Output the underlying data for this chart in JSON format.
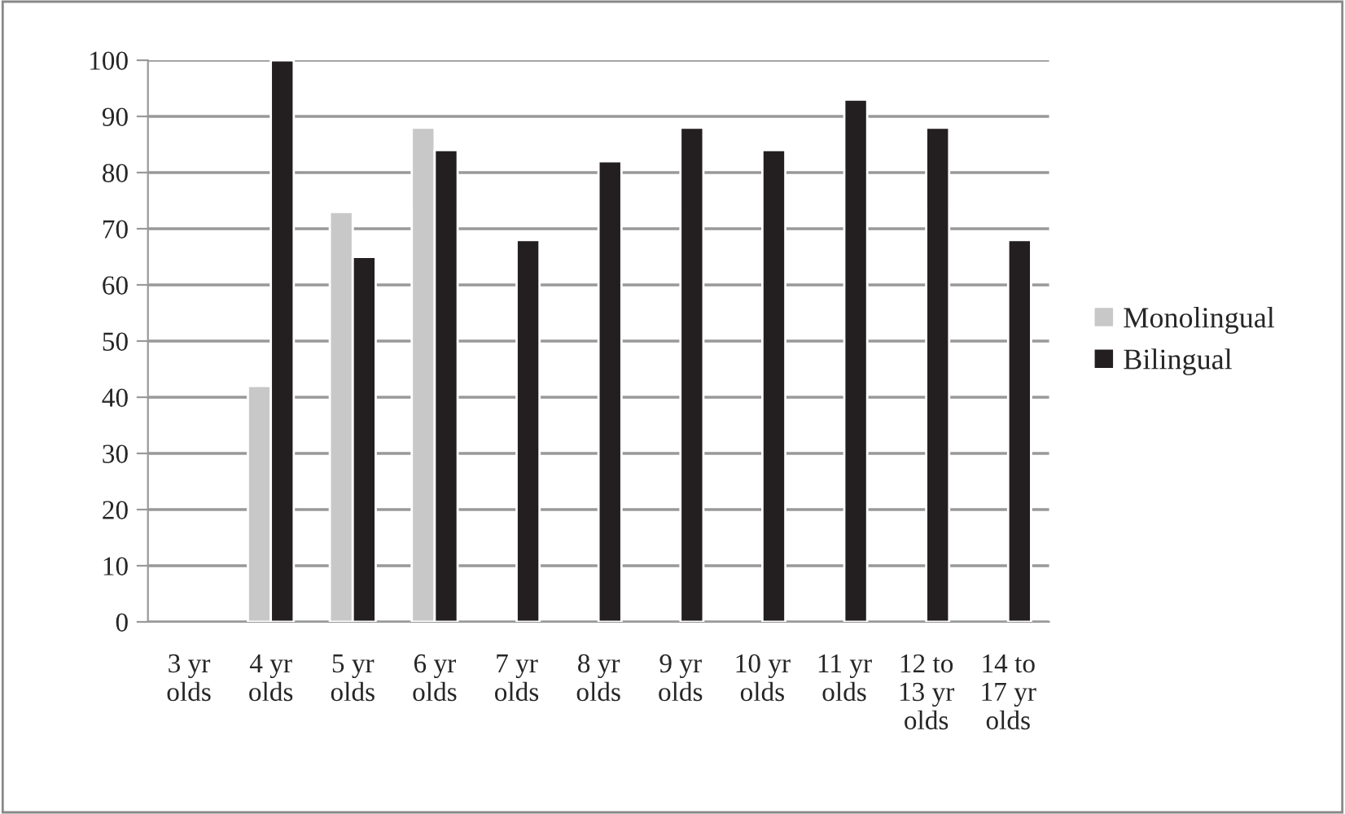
{
  "chart_data": {
    "type": "bar",
    "categories": [
      "3 yr\nolds",
      "4 yr\nolds",
      "5 yr\nolds",
      "6 yr\nolds",
      "7 yr\nolds",
      "8 yr\nolds",
      "9 yr\nolds",
      "10 yr\nolds",
      "11 yr\nolds",
      "12 to\n13 yr\nolds",
      "14 to\n17 yr\nolds"
    ],
    "series": [
      {
        "name": "Monolingual",
        "color": "#c8c8c8",
        "values": [
          null,
          42,
          73,
          88,
          null,
          null,
          null,
          null,
          null,
          null,
          null
        ]
      },
      {
        "name": "Bilingual",
        "color": "#231f20",
        "values": [
          null,
          100,
          65,
          84,
          68,
          82,
          88,
          84,
          93,
          88,
          68
        ]
      }
    ],
    "ylim": [
      0,
      100
    ],
    "yticks": [
      0,
      10,
      20,
      30,
      40,
      50,
      60,
      70,
      80,
      90,
      100
    ],
    "grid": "y",
    "legend": "right"
  }
}
